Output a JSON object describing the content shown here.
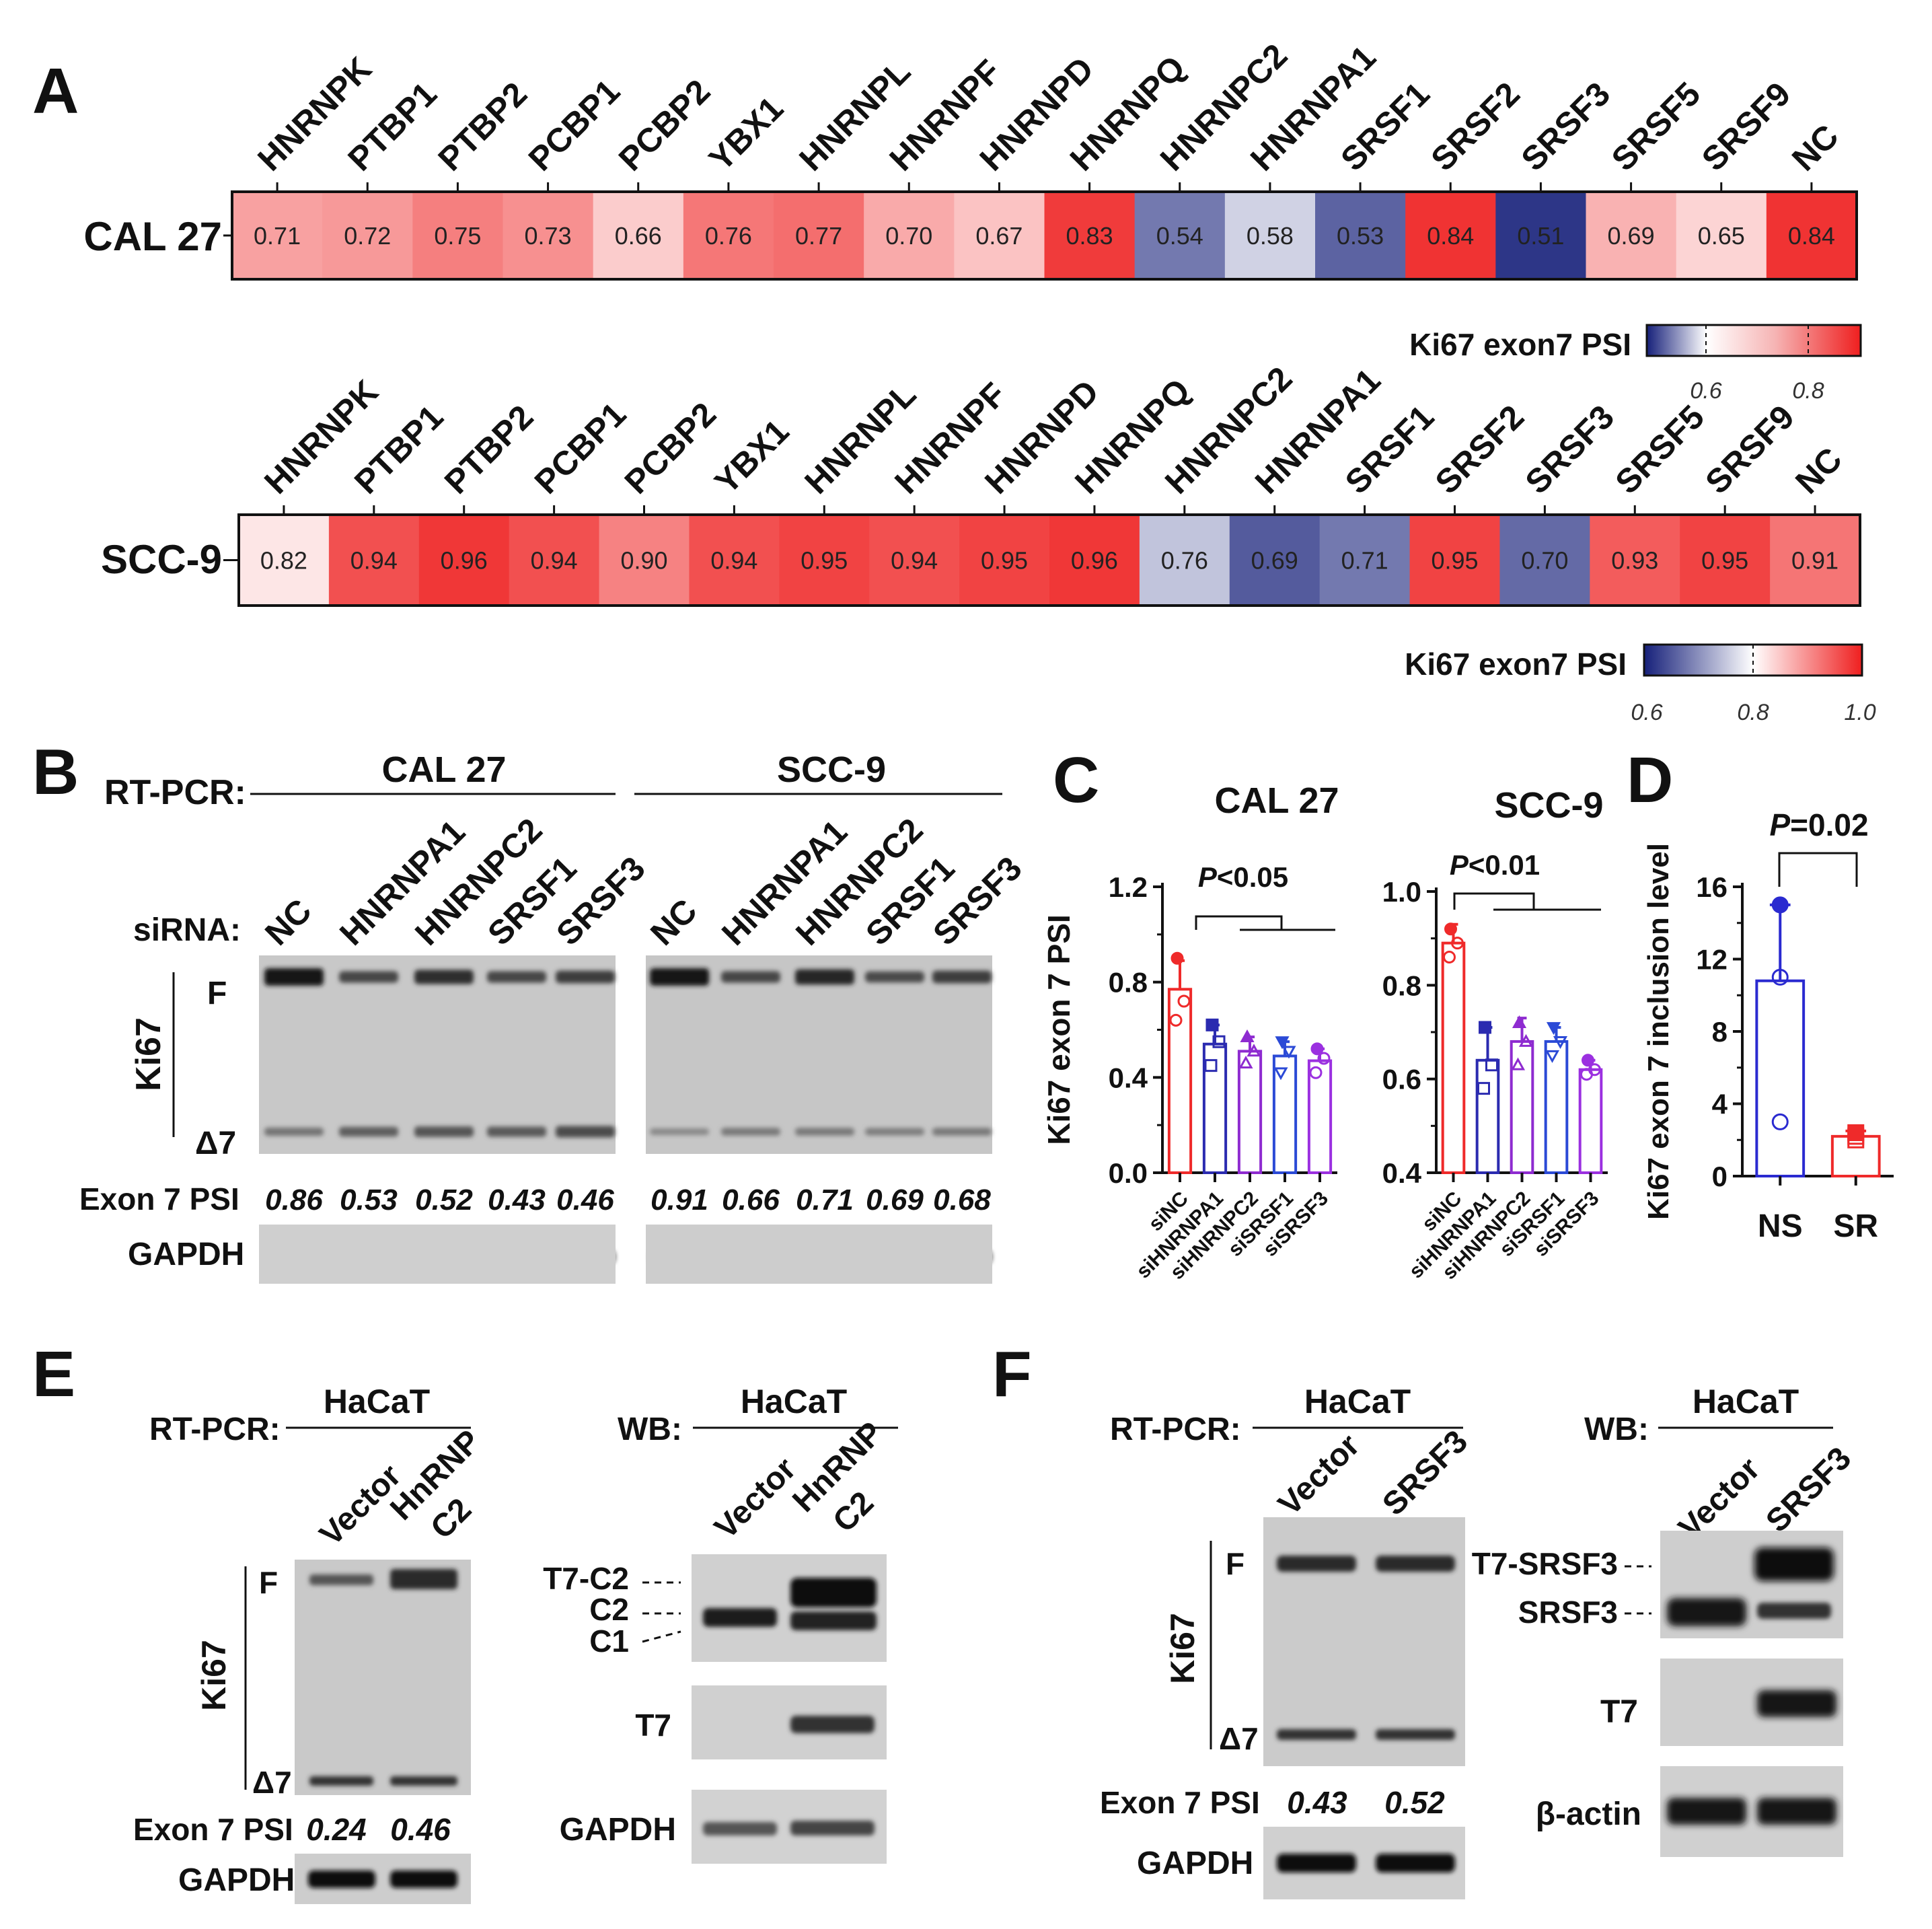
{
  "colors": {
    "low": "#16207a",
    "mid": "#ffffff",
    "high": "#ef2a2a",
    "highlight": "#e51d1d",
    "gel_bg": "#c9c9c9",
    "band": "#2b2b2b",
    "text": "#111111"
  },
  "panels": {
    "A": "A",
    "B": "B",
    "C": "C",
    "D": "D",
    "E": "E",
    "F": "F"
  },
  "heatmaps": [
    {
      "cell_line": "CAL 27",
      "genes": [
        "HNRNPK",
        "PTBP1",
        "PTBP2",
        "PCBP1",
        "PCBP2",
        "YBX1",
        "HNRNPL",
        "HNRNPF",
        "HNRNPD",
        "HNRNPQ",
        "HNRNPC2",
        "HNRNPA1",
        "SRSF1",
        "SRSF2",
        "SRSF3",
        "SRSF5",
        "SRSF9",
        "NC"
      ],
      "highlighted": [
        false,
        false,
        false,
        false,
        false,
        false,
        false,
        false,
        false,
        false,
        true,
        true,
        true,
        false,
        true,
        false,
        false,
        false
      ],
      "values": [
        "0.71",
        "0.72",
        "0.75",
        "0.73",
        "0.66",
        "0.76",
        "0.77",
        "0.70",
        "0.67",
        "0.83",
        "0.54",
        "0.58",
        "0.53",
        "0.84",
        "0.51",
        "0.69",
        "0.65",
        "0.84"
      ],
      "colorbar": {
        "label": "Ki67 exon7 PSI",
        "range": [
          0.5,
          0.85
        ],
        "ticks": [
          "0.6",
          "0.8"
        ]
      }
    },
    {
      "cell_line": "SCC-9",
      "genes": [
        "HNRNPK",
        "PTBP1",
        "PTBP2",
        "PCBP1",
        "PCBP2",
        "YBX1",
        "HNRNPL",
        "HNRNPF",
        "HNRNPD",
        "HNRNPQ",
        "HNRNPC2",
        "HNRNPA1",
        "SRSF1",
        "SRSF2",
        "SRSF3",
        "SRSF5",
        "SRSF9",
        "NC"
      ],
      "highlighted": [
        false,
        false,
        false,
        false,
        false,
        false,
        false,
        false,
        false,
        false,
        true,
        true,
        true,
        false,
        true,
        false,
        false,
        false
      ],
      "values": [
        "0.82",
        "0.94",
        "0.96",
        "0.94",
        "0.90",
        "0.94",
        "0.95",
        "0.94",
        "0.95",
        "0.96",
        "0.76",
        "0.69",
        "0.71",
        "0.95",
        "0.70",
        "0.93",
        "0.95",
        "0.91"
      ],
      "colorbar": {
        "label": "Ki67 exon7 PSI",
        "range": [
          0.6,
          1.0
        ],
        "ticks": [
          "0.6",
          "0.8",
          "1.0"
        ]
      }
    }
  ],
  "panelB": {
    "method": "RT-PCR:",
    "sirna_label": "siRNA:",
    "gene_label": "Ki67",
    "band_f": "F",
    "band_d7": "Δ7",
    "psi_label": "Exon 7 PSI",
    "gapdh": "GAPDH",
    "groups": [
      {
        "cell_line": "CAL 27",
        "lanes": [
          "NC",
          "HNRNPA1",
          "HNRNPC2",
          "SRSF1",
          "SRSF3"
        ],
        "psi": [
          "0.86",
          "0.53",
          "0.52",
          "0.43",
          "0.46"
        ],
        "f_strength": [
          1.0,
          0.45,
          0.7,
          0.45,
          0.55
        ],
        "d7_strength": [
          0.35,
          0.55,
          0.65,
          0.6,
          0.75
        ]
      },
      {
        "cell_line": "SCC-9",
        "lanes": [
          "NC",
          "HNRNPA1",
          "HNRNPC2",
          "SRSF1",
          "SRSF3"
        ],
        "psi": [
          "0.91",
          "0.66",
          "0.71",
          "0.69",
          "0.68"
        ],
        "f_strength": [
          1.0,
          0.45,
          0.8,
          0.4,
          0.55
        ],
        "d7_strength": [
          0.15,
          0.3,
          0.3,
          0.25,
          0.3
        ]
      }
    ]
  },
  "chart_data": [
    {
      "type": "bar",
      "title": "CAL 27",
      "ylabel": "Ki67 exon 7 PSI",
      "categories": [
        "siNC",
        "siHNRNPA1",
        "siHNRNPC2",
        "siSRSF1",
        "siSRSF3"
      ],
      "values": [
        0.77,
        0.54,
        0.51,
        0.49,
        0.47
      ],
      "errors": [
        0.12,
        0.08,
        0.06,
        0.06,
        0.05
      ],
      "points": [
        [
          0.9,
          0.72,
          0.64
        ],
        [
          0.62,
          0.55,
          0.45
        ],
        [
          0.57,
          0.51,
          0.46
        ],
        [
          0.55,
          0.51,
          0.42
        ],
        [
          0.52,
          0.48,
          0.42
        ]
      ],
      "colors": [
        "#ef2a2a",
        "#2b2bb0",
        "#8e2bd0",
        "#2b4ad6",
        "#9b30e0"
      ],
      "ylim": [
        0,
        1.2
      ],
      "yticks": [
        "0.0",
        "0.4",
        "0.8",
        "1.2"
      ],
      "annotation": "P<0.05",
      "annotation_p": "P",
      "annotation_rest": "<0.05"
    },
    {
      "type": "bar",
      "title": "SCC-9",
      "ylabel": "",
      "categories": [
        "siNC",
        "siHNRNPA1",
        "siHNRNPC2",
        "siSRSF1",
        "siSRSF3"
      ],
      "values": [
        0.89,
        0.64,
        0.68,
        0.68,
        0.62
      ],
      "errors": [
        0.04,
        0.07,
        0.05,
        0.03,
        0.02
      ],
      "points": [
        [
          0.92,
          0.89,
          0.86
        ],
        [
          0.71,
          0.63,
          0.58
        ],
        [
          0.72,
          0.68,
          0.63
        ],
        [
          0.71,
          0.68,
          0.65
        ],
        [
          0.64,
          0.62,
          0.61
        ]
      ],
      "colors": [
        "#ef2a2a",
        "#2b2bb0",
        "#8e2bd0",
        "#2b4ad6",
        "#9b30e0"
      ],
      "ylim": [
        0.4,
        1.0
      ],
      "yticks": [
        "0.4",
        "0.6",
        "0.8",
        "1.0"
      ],
      "annotation": "P<0.01",
      "annotation_p": "P",
      "annotation_rest": "<0.01"
    },
    {
      "type": "bar",
      "title": "",
      "ylabel": "Ki67 exon 7 inclusion level",
      "categories": [
        "NS",
        "SR"
      ],
      "values": [
        10.8,
        2.2
      ],
      "errors": [
        4.2,
        0.3
      ],
      "points": [
        [
          15,
          11,
          3
        ],
        [
          2.4,
          2.0,
          2.2
        ]
      ],
      "colors": [
        "#2a2ad0",
        "#ef2a2a"
      ],
      "ylim": [
        0,
        16
      ],
      "yticks": [
        "0",
        "4",
        "8",
        "12",
        "16"
      ],
      "annotation": "P=0.02",
      "annotation_p": "P",
      "annotation_rest": "=0.02"
    }
  ],
  "panelE": {
    "rtpcr": {
      "method": "RT-PCR:",
      "cell_line": "HaCaT",
      "lanes": [
        "Vector",
        "HnRNP\nC2"
      ],
      "lane1": "Vector",
      "lane2a": "HnRNP",
      "lane2b": "C2",
      "gene_label": "Ki67",
      "band_f": "F",
      "band_d7": "Δ7",
      "psi_label": "Exon 7 PSI",
      "psi": [
        "0.24",
        "0.46"
      ],
      "gapdh": "GAPDH"
    },
    "wb": {
      "method": "WB:",
      "cell_line": "HaCaT",
      "lane1": "Vector",
      "lane2a": "HnRNP",
      "lane2b": "C2",
      "bands": [
        "T7-C2",
        "C2",
        "C1"
      ],
      "t7": "T7",
      "gapdh": "GAPDH"
    }
  },
  "panelF": {
    "rtpcr": {
      "method": "RT-PCR:",
      "cell_line": "HaCaT",
      "lane1": "Vector",
      "lane2": "SRSF3",
      "gene_label": "Ki67",
      "band_f": "F",
      "band_d7": "Δ7",
      "psi_label": "Exon 7 PSI",
      "psi": [
        "0.43",
        "0.52"
      ],
      "gapdh": "GAPDH"
    },
    "wb": {
      "method": "WB:",
      "cell_line": "HaCaT",
      "lane1": "Vector",
      "lane2": "SRSF3",
      "bands": [
        "T7-SRSF3",
        "SRSF3"
      ],
      "t7": "T7",
      "actin": "β-actin"
    }
  }
}
